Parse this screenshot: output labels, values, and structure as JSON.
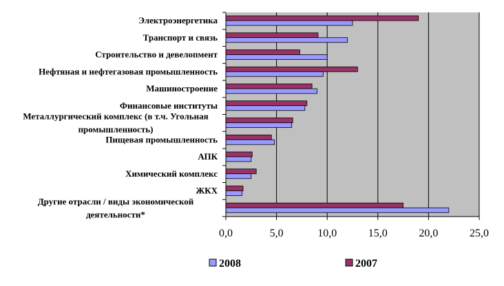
{
  "chart_data": {
    "type": "bar",
    "orientation": "horizontal",
    "categories": [
      "Электроэнергетика",
      "Транспорт и связь",
      "Строительство и девелопмент",
      "Нефтяная и нефтегазовая промышленность",
      "Машиностроение",
      "Финансовые институты",
      "Металлургический комплекс (в т.ч. Угольная промышленность)",
      "Пищевая промышленность",
      "АПК",
      "Химический комплекс",
      "ЖКХ",
      "Другие отрасли / виды экономической деятельности*"
    ],
    "category_lines": [
      [
        "Электроэнергетика"
      ],
      [
        "Транспорт и связь"
      ],
      [
        "Строительство и девелопмент"
      ],
      [
        "Нефтяная и нефтегазовая промышленность"
      ],
      [
        "Машиностроение"
      ],
      [
        "Финансовые институты"
      ],
      [
        "Металлургический комплекс (в т.ч. Угольная",
        "промышленность)"
      ],
      [
        "Пищевая промышленность"
      ],
      [
        "АПК"
      ],
      [
        "Химический комплекс"
      ],
      [
        "ЖКХ"
      ],
      [
        "Другие отрасли / виды экономической",
        "деятельности*"
      ]
    ],
    "series": [
      {
        "name": "2007",
        "color": "#993366",
        "values": [
          19.0,
          9.1,
          7.3,
          13.0,
          8.5,
          8.0,
          6.6,
          4.5,
          2.6,
          3.0,
          1.7,
          17.5
        ]
      },
      {
        "name": "2008",
        "color": "#9999ff",
        "values": [
          12.5,
          12.0,
          10.0,
          9.6,
          9.0,
          7.8,
          6.5,
          4.8,
          2.5,
          2.5,
          1.6,
          22.0
        ]
      }
    ],
    "xlim": [
      0,
      25
    ],
    "x_ticks": [
      "0,0",
      "5,0",
      "10,0",
      "15,0",
      "20,0",
      "25,0"
    ],
    "plot_background": "#c0c0c0",
    "grid": true,
    "legend": {
      "placement": "bottom",
      "entries": [
        "2008",
        "2007"
      ]
    }
  }
}
